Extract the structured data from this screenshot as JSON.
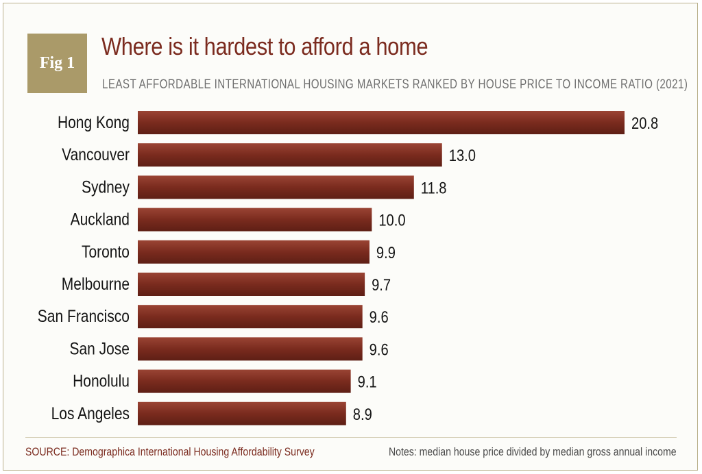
{
  "figure": {
    "badge": "Fig 1",
    "title": "Where is it hardest to afford a home",
    "subtitle": "LEAST AFFORDABLE INTERNATIONAL HOUSING MARKETS RANKED BY HOUSE PRICE TO INCOME RATIO (2021)",
    "source": "SOURCE: Demographica International Housing Affordability Survey",
    "notes": "Notes: median house price divided by median gross annual income"
  },
  "colors": {
    "bar": "#7a2b1e",
    "bar_highlight": "#9a4434",
    "title": "#7b2b1f",
    "badge": "#aa9a69"
  },
  "chart_data": {
    "type": "bar",
    "orientation": "horizontal",
    "title": "Where is it hardest to afford a home",
    "subtitle": "LEAST AFFORDABLE INTERNATIONAL HOUSING MARKETS RANKED BY HOUSE PRICE TO INCOME RATIO (2021)",
    "categories": [
      "Hong Kong",
      "Vancouver",
      "Sydney",
      "Auckland",
      "Toronto",
      "Melbourne",
      "San Francisco",
      "San Jose",
      "Honolulu",
      "Los Angeles"
    ],
    "values": [
      20.8,
      13.0,
      11.8,
      10.0,
      9.9,
      9.7,
      9.6,
      9.6,
      9.1,
      8.9
    ],
    "value_labels": [
      "20.8",
      "13.0",
      "11.8",
      "10.0",
      "9.9",
      "9.7",
      "9.6",
      "9.6",
      "9.1",
      "8.9"
    ],
    "xlabel": "",
    "ylabel": "",
    "xlim": [
      0,
      20.8
    ],
    "grid": false,
    "legend": "none"
  }
}
